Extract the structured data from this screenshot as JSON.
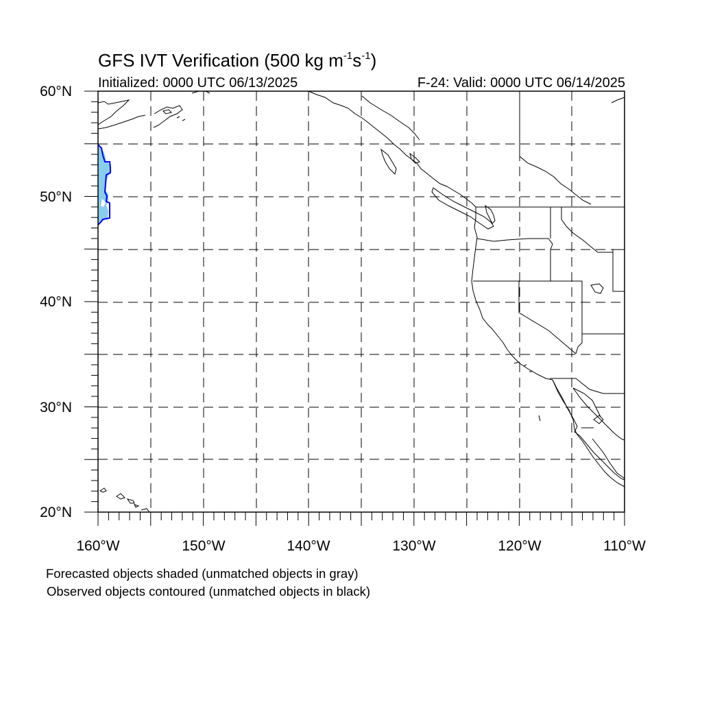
{
  "title_main": "GFS IVT Verification (500 kg m",
  "title_exp1": "-1",
  "title_mid": "s",
  "title_exp2": "-1",
  "title_end": ")",
  "initialized": "Initialized: 0000 UTC 06/13/2025",
  "valid": "F-24: Valid: 0000 UTC 06/14/2025",
  "lat_labels": [
    "60°N",
    "50°N",
    "40°N",
    "30°N",
    "20°N"
  ],
  "lon_labels": [
    "160°W",
    "150°W",
    "140°W",
    "130°W",
    "120°W",
    "110°W"
  ],
  "legend_forecast": "Forecasted objects shaded (unmatched objects in gray)",
  "legend_observed": "Observed objects contoured (unmatched objects in black)",
  "map_extent": {
    "lon_min": -160,
    "lon_max": -110,
    "lat_min": 20,
    "lat_max": 60
  },
  "colors": {
    "forecast_fill": "#87ceeb",
    "observed_contour": "#0000ff",
    "coast": "#000000",
    "grid": "#000000"
  }
}
